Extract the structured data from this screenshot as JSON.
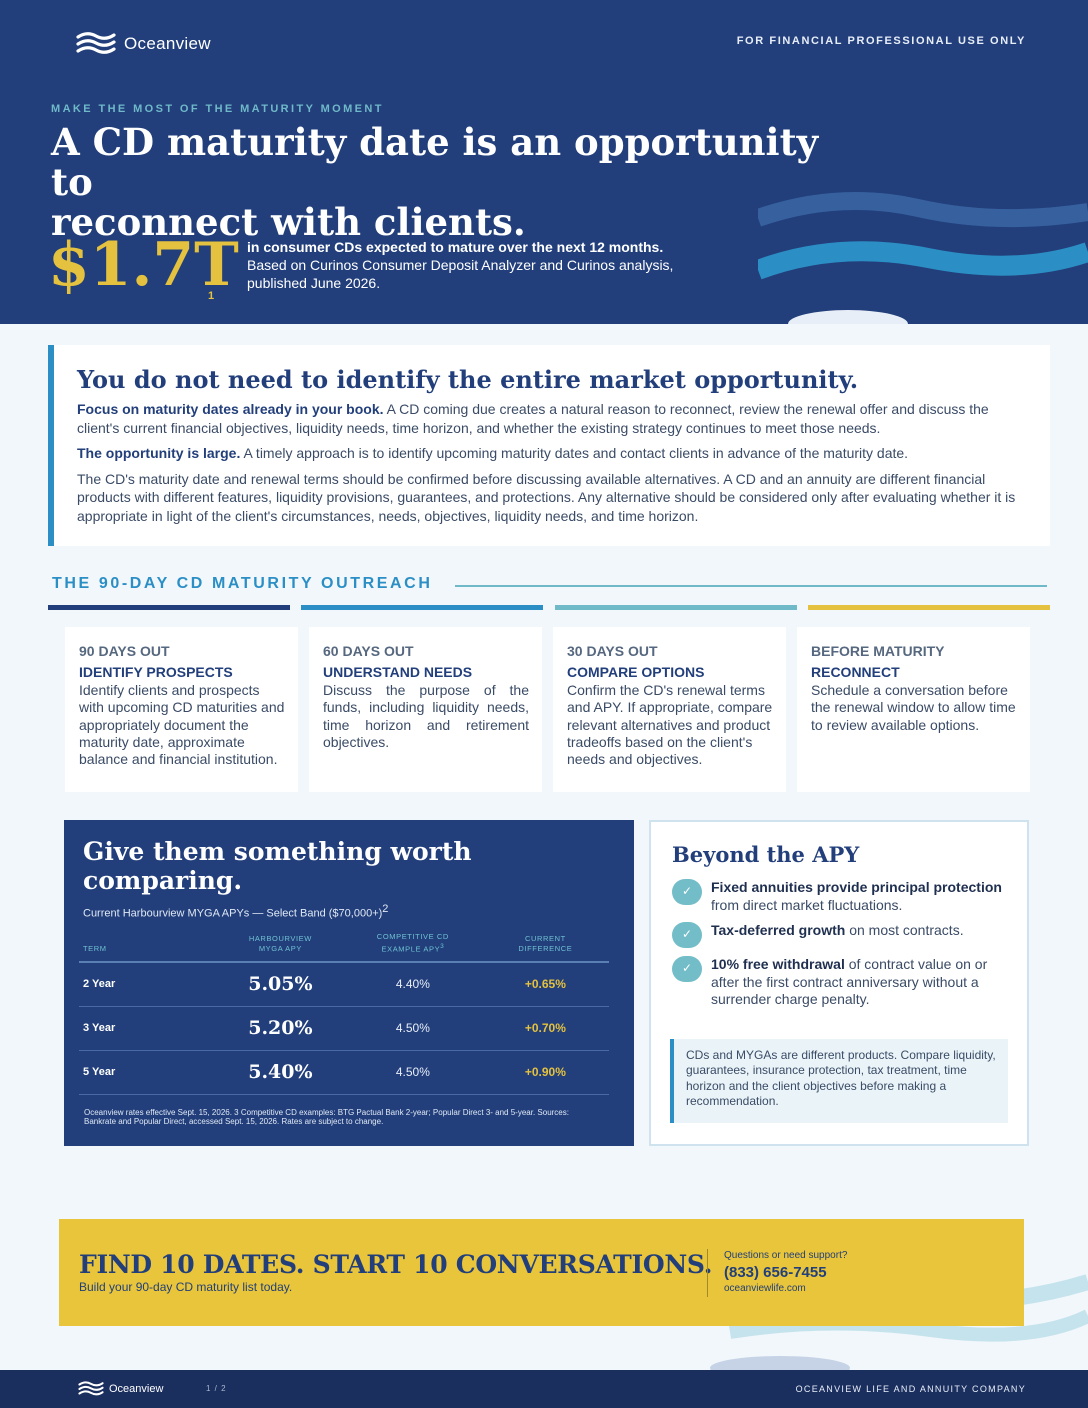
{
  "header": {
    "brand": "Oceanview",
    "audience_notice": "FOR FINANCIAL PROFESSIONAL USE ONLY",
    "eyebrow": "MAKE THE MOST OF THE MATURITY MOMENT",
    "headline_line1": "A CD maturity date is an opportunity to",
    "headline_line2": "reconnect with clients.",
    "stat_value": "$1.7T",
    "stat_footnote": "1",
    "stat_bold": "in consumer CDs expected to mature over the next 12 months.",
    "stat_source": "Based on Curinos Consumer Deposit Analyzer and Curinos analysis, published June 2026."
  },
  "intro": {
    "heading": "You do not need to identify the entire market opportunity.",
    "p1_bold": "Focus on maturity dates already in your book.",
    "p1_text": " A CD coming due creates a natural reason to reconnect, review the renewal offer and discuss the client's current financial objectives, liquidity needs, time horizon, and whether the existing strategy continues to meet those needs.",
    "p2_bold": "The opportunity is large.",
    "p2_text": " A timely approach is to identify upcoming maturity dates and contact clients in advance of the maturity date.",
    "p3_text": "The CD's maturity date and renewal terms should be confirmed before discussing available alternatives. A CD and an annuity are different financial products with different features, liquidity provisions, guarantees, and protections. Any alternative should be considered only after evaluating whether it is appropriate in light of the client's circumstances, needs, objectives, liquidity needs, and time horizon."
  },
  "outreach": {
    "title": "THE 90-DAY CD MATURITY OUTREACH",
    "bar_colors": [
      "#223f7b",
      "#2b8fc5",
      "#6fb9c9",
      "#e4c13e"
    ],
    "steps": [
      {
        "days": "90 DAYS OUT",
        "title": "IDENTIFY PROSPECTS",
        "desc": "Identify clients and prospects with upcoming CD maturities and appropriately document the maturity date, approximate balance and financial institution."
      },
      {
        "days": "60 DAYS OUT",
        "title": "UNDERSTAND NEEDS",
        "desc": "Discuss the purpose of the funds, including liquidity needs, time horizon and retirement objectives."
      },
      {
        "days": "30 DAYS OUT",
        "title": "COMPARE OPTIONS",
        "desc": "Confirm the CD's renewal terms and APY. If appropriate, compare relevant alternatives and product tradeoffs based on the client's needs and objectives."
      },
      {
        "days": "BEFORE MATURITY",
        "title": "RECONNECT",
        "desc": "Schedule a conversation before the renewal window to allow time to review available options."
      }
    ]
  },
  "compare": {
    "heading": "Give them something worth comparing.",
    "subtitle": "Current Harbourview MYGA APYs — Select Band ($70,000+)",
    "subtitle_footnote": "2",
    "columns": {
      "term": "TERM",
      "myga_line1": "HARBOURVIEW",
      "myga_line2": "MYGA APY",
      "cd_line1": "COMPETITIVE CD",
      "cd_line2": "EXAMPLE APY",
      "cd_footnote": "3",
      "diff_line1": "CURRENT",
      "diff_line2": "DIFFERENCE"
    },
    "rows": [
      {
        "term": "2 Year",
        "myga": "5.05%",
        "cd": "4.40%",
        "diff": "+0.65%"
      },
      {
        "term": "3 Year",
        "myga": "5.20%",
        "cd": "4.50%",
        "diff": "+0.70%"
      },
      {
        "term": "5 Year",
        "myga": "5.40%",
        "cd": "4.50%",
        "diff": "+0.90%"
      }
    ],
    "note": "Oceanview rates effective Sept. 15, 2026. 3 Competitive CD examples: BTG Pactual Bank 2-year; Popular Direct 3- and 5-year. Sources: Bankrate and Popular Direct, accessed Sept. 15, 2026. Rates are subject to change."
  },
  "beyond": {
    "heading": "Beyond the APY",
    "items": [
      {
        "bold": "Fixed annuities provide principal protection",
        "text": " from direct market fluctuations."
      },
      {
        "bold": "Tax-deferred growth",
        "text": " on most contracts."
      },
      {
        "bold": "10% free withdrawal",
        "text": " of contract value on or after the first contract anniversary without a surrender charge penalty."
      }
    ],
    "callout": "CDs and MYGAs are different products. Compare liquidity, guarantees, insurance protection, tax treatment, time horizon and the client objectives before making a recommendation."
  },
  "cta": {
    "heading": "FIND 10 DATES. START 10 CONVERSATIONS.",
    "subheading": "Build your 90-day CD maturity list today.",
    "support_label": "Questions or need support?",
    "phone": "(833) 656-7455",
    "website": "oceanviewlife.com"
  },
  "footer": {
    "brand": "Oceanview",
    "page": "1 / 2",
    "company": "OCEANVIEW LIFE AND ANNUITY COMPANY"
  }
}
